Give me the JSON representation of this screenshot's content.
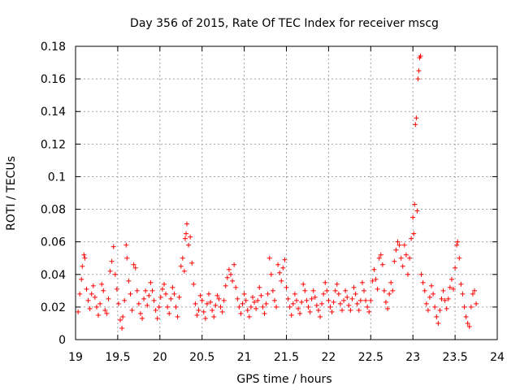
{
  "chart_data": {
    "type": "scatter",
    "title": "Day 356 of 2015, Rate Of TEC Index for receiver mscg",
    "xlabel": "GPS time / hours",
    "ylabel": "ROTI / TECUs",
    "xlim": [
      19,
      24
    ],
    "ylim": [
      0,
      0.18
    ],
    "xticks": [
      "19",
      "19.5",
      "20",
      "20.5",
      "21",
      "21.5",
      "22",
      "22.5",
      "23",
      "23.5",
      "24"
    ],
    "yticks": [
      "0",
      "0.02",
      "0.04",
      "0.06",
      "0.08",
      "0.1",
      "0.12",
      "0.14",
      "0.16",
      "0.18"
    ],
    "grid": true,
    "marker": "+",
    "color": "#ff0000",
    "series": [
      {
        "name": "mscg",
        "points": [
          [
            19.03,
            0.017
          ],
          [
            19.05,
            0.028
          ],
          [
            19.07,
            0.037
          ],
          [
            19.08,
            0.045
          ],
          [
            19.1,
            0.052
          ],
          [
            19.11,
            0.05
          ],
          [
            19.13,
            0.031
          ],
          [
            19.15,
            0.024
          ],
          [
            19.17,
            0.019
          ],
          [
            19.19,
            0.028
          ],
          [
            19.21,
            0.033
          ],
          [
            19.23,
            0.026
          ],
          [
            19.25,
            0.02
          ],
          [
            19.27,
            0.015
          ],
          [
            19.29,
            0.022
          ],
          [
            19.31,
            0.034
          ],
          [
            19.33,
            0.03
          ],
          [
            19.35,
            0.018
          ],
          [
            19.37,
            0.016
          ],
          [
            19.39,
            0.025
          ],
          [
            19.41,
            0.042
          ],
          [
            19.43,
            0.048
          ],
          [
            19.45,
            0.057
          ],
          [
            19.47,
            0.04
          ],
          [
            19.49,
            0.031
          ],
          [
            19.51,
            0.022
          ],
          [
            19.53,
            0.012
          ],
          [
            19.55,
            0.007
          ],
          [
            19.56,
            0.014
          ],
          [
            19.58,
            0.024
          ],
          [
            19.6,
            0.058
          ],
          [
            19.61,
            0.05
          ],
          [
            19.63,
            0.036
          ],
          [
            19.65,
            0.028
          ],
          [
            19.67,
            0.018
          ],
          [
            19.69,
            0.046
          ],
          [
            19.71,
            0.044
          ],
          [
            19.73,
            0.03
          ],
          [
            19.75,
            0.022
          ],
          [
            19.77,
            0.016
          ],
          [
            19.79,
            0.013
          ],
          [
            19.81,
            0.025
          ],
          [
            19.83,
            0.03
          ],
          [
            19.85,
            0.021
          ],
          [
            19.87,
            0.027
          ],
          [
            19.89,
            0.035
          ],
          [
            19.91,
            0.03
          ],
          [
            19.93,
            0.024
          ],
          [
            19.95,
            0.018
          ],
          [
            19.97,
            0.013
          ],
          [
            19.99,
            0.02
          ],
          [
            20.01,
            0.026
          ],
          [
            20.03,
            0.031
          ],
          [
            20.05,
            0.034
          ],
          [
            20.07,
            0.028
          ],
          [
            20.09,
            0.02
          ],
          [
            20.11,
            0.016
          ],
          [
            20.13,
            0.025
          ],
          [
            20.15,
            0.032
          ],
          [
            20.17,
            0.028
          ],
          [
            20.19,
            0.02
          ],
          [
            20.21,
            0.014
          ],
          [
            20.23,
            0.026
          ],
          [
            20.25,
            0.045
          ],
          [
            20.27,
            0.05
          ],
          [
            20.29,
            0.042
          ],
          [
            20.3,
            0.062
          ],
          [
            20.31,
            0.065
          ],
          [
            20.32,
            0.071
          ],
          [
            20.34,
            0.058
          ],
          [
            20.36,
            0.063
          ],
          [
            20.38,
            0.047
          ],
          [
            20.4,
            0.034
          ],
          [
            20.42,
            0.022
          ],
          [
            20.44,
            0.015
          ],
          [
            20.46,
            0.018
          ],
          [
            20.48,
            0.027
          ],
          [
            20.5,
            0.024
          ],
          [
            20.52,
            0.017
          ],
          [
            20.54,
            0.013
          ],
          [
            20.56,
            0.022
          ],
          [
            20.58,
            0.028
          ],
          [
            20.6,
            0.023
          ],
          [
            20.62,
            0.018
          ],
          [
            20.64,
            0.014
          ],
          [
            20.66,
            0.021
          ],
          [
            20.68,
            0.027
          ],
          [
            20.7,
            0.025
          ],
          [
            20.72,
            0.02
          ],
          [
            20.74,
            0.017
          ],
          [
            20.76,
            0.024
          ],
          [
            20.78,
            0.033
          ],
          [
            20.8,
            0.038
          ],
          [
            20.82,
            0.043
          ],
          [
            20.84,
            0.04
          ],
          [
            20.86,
            0.036
          ],
          [
            20.88,
            0.046
          ],
          [
            20.9,
            0.032
          ],
          [
            20.92,
            0.025
          ],
          [
            20.94,
            0.02
          ],
          [
            20.96,
            0.016
          ],
          [
            20.98,
            0.022
          ],
          [
            21.0,
            0.028
          ],
          [
            21.02,
            0.024
          ],
          [
            21.04,
            0.018
          ],
          [
            21.06,
            0.014
          ],
          [
            21.08,
            0.02
          ],
          [
            21.1,
            0.026
          ],
          [
            21.12,
            0.023
          ],
          [
            21.14,
            0.019
          ],
          [
            21.16,
            0.024
          ],
          [
            21.18,
            0.032
          ],
          [
            21.2,
            0.027
          ],
          [
            21.22,
            0.02
          ],
          [
            21.24,
            0.016
          ],
          [
            21.26,
            0.022
          ],
          [
            21.28,
            0.028
          ],
          [
            21.3,
            0.05
          ],
          [
            21.32,
            0.04
          ],
          [
            21.34,
            0.03
          ],
          [
            21.36,
            0.024
          ],
          [
            21.38,
            0.02
          ],
          [
            21.4,
            0.046
          ],
          [
            21.42,
            0.041
          ],
          [
            21.44,
            0.036
          ],
          [
            21.46,
            0.044
          ],
          [
            21.48,
            0.049
          ],
          [
            21.5,
            0.032
          ],
          [
            21.52,
            0.025
          ],
          [
            21.54,
            0.02
          ],
          [
            21.56,
            0.015
          ],
          [
            21.58,
            0.022
          ],
          [
            21.6,
            0.028
          ],
          [
            21.62,
            0.024
          ],
          [
            21.64,
            0.019
          ],
          [
            21.66,
            0.016
          ],
          [
            21.68,
            0.023
          ],
          [
            21.7,
            0.034
          ],
          [
            21.72,
            0.03
          ],
          [
            21.74,
            0.024
          ],
          [
            21.76,
            0.02
          ],
          [
            21.78,
            0.017
          ],
          [
            21.8,
            0.025
          ],
          [
            21.82,
            0.03
          ],
          [
            21.84,
            0.026
          ],
          [
            21.86,
            0.021
          ],
          [
            21.88,
            0.018
          ],
          [
            21.9,
            0.014
          ],
          [
            21.92,
            0.022
          ],
          [
            21.94,
            0.028
          ],
          [
            21.96,
            0.035
          ],
          [
            21.98,
            0.03
          ],
          [
            22.0,
            0.024
          ],
          [
            22.02,
            0.02
          ],
          [
            22.04,
            0.017
          ],
          [
            22.06,
            0.023
          ],
          [
            22.08,
            0.03
          ],
          [
            22.1,
            0.034
          ],
          [
            22.12,
            0.028
          ],
          [
            22.14,
            0.022
          ],
          [
            22.16,
            0.018
          ],
          [
            22.18,
            0.024
          ],
          [
            22.2,
            0.03
          ],
          [
            22.22,
            0.026
          ],
          [
            22.24,
            0.021
          ],
          [
            22.26,
            0.018
          ],
          [
            22.28,
            0.025
          ],
          [
            22.3,
            0.032
          ],
          [
            22.32,
            0.028
          ],
          [
            22.34,
            0.022
          ],
          [
            22.36,
            0.018
          ],
          [
            22.38,
            0.024
          ],
          [
            22.4,
            0.035
          ],
          [
            22.42,
            0.03
          ],
          [
            22.44,
            0.024
          ],
          [
            22.46,
            0.02
          ],
          [
            22.48,
            0.017
          ],
          [
            22.5,
            0.024
          ],
          [
            22.52,
            0.036
          ],
          [
            22.54,
            0.043
          ],
          [
            22.56,
            0.037
          ],
          [
            22.58,
            0.031
          ],
          [
            22.6,
            0.05
          ],
          [
            22.62,
            0.052
          ],
          [
            22.64,
            0.046
          ],
          [
            22.66,
            0.03
          ],
          [
            22.68,
            0.023
          ],
          [
            22.7,
            0.019
          ],
          [
            22.72,
            0.028
          ],
          [
            22.74,
            0.035
          ],
          [
            22.76,
            0.03
          ],
          [
            22.78,
            0.048
          ],
          [
            22.8,
            0.055
          ],
          [
            22.82,
            0.06
          ],
          [
            22.84,
            0.058
          ],
          [
            22.86,
            0.05
          ],
          [
            22.88,
            0.045
          ],
          [
            22.9,
            0.058
          ],
          [
            22.92,
            0.052
          ],
          [
            22.94,
            0.04
          ],
          [
            22.96,
            0.05
          ],
          [
            22.98,
            0.062
          ],
          [
            23.0,
            0.075
          ],
          [
            23.01,
            0.065
          ],
          [
            23.02,
            0.083
          ],
          [
            23.03,
            0.132
          ],
          [
            23.04,
            0.136
          ],
          [
            23.05,
            0.079
          ],
          [
            23.06,
            0.16
          ],
          [
            23.07,
            0.165
          ],
          [
            23.08,
            0.173
          ],
          [
            23.09,
            0.174
          ],
          [
            23.1,
            0.04
          ],
          [
            23.12,
            0.035
          ],
          [
            23.14,
            0.03
          ],
          [
            23.16,
            0.022
          ],
          [
            23.18,
            0.018
          ],
          [
            23.2,
            0.026
          ],
          [
            23.22,
            0.033
          ],
          [
            23.24,
            0.028
          ],
          [
            23.26,
            0.02
          ],
          [
            23.28,
            0.014
          ],
          [
            23.3,
            0.01
          ],
          [
            23.32,
            0.018
          ],
          [
            23.34,
            0.025
          ],
          [
            23.36,
            0.03
          ],
          [
            23.38,
            0.024
          ],
          [
            23.4,
            0.019
          ],
          [
            23.42,
            0.025
          ],
          [
            23.44,
            0.032
          ],
          [
            23.46,
            0.037
          ],
          [
            23.48,
            0.031
          ],
          [
            23.5,
            0.044
          ],
          [
            23.52,
            0.058
          ],
          [
            23.53,
            0.06
          ],
          [
            23.55,
            0.05
          ],
          [
            23.57,
            0.034
          ],
          [
            23.59,
            0.028
          ],
          [
            23.61,
            0.02
          ],
          [
            23.63,
            0.014
          ],
          [
            23.65,
            0.01
          ],
          [
            23.67,
            0.008
          ],
          [
            23.69,
            0.02
          ],
          [
            23.71,
            0.028
          ],
          [
            23.73,
            0.03
          ],
          [
            23.75,
            0.022
          ]
        ]
      }
    ]
  }
}
